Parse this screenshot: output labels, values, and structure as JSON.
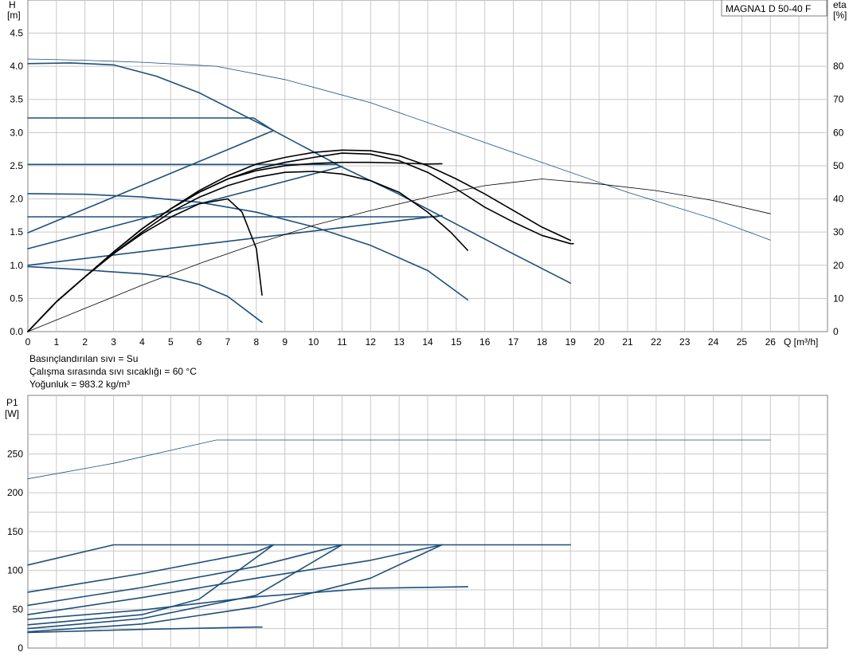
{
  "title_box": "MAGNA1 D 50-40 F",
  "notes": [
    "Basınçlandırılan sıvı = Su",
    "Çalışma sırasında sıvı sıcaklığı = 60 °C",
    "Yoğunluk = 983.2 kg/m³"
  ],
  "colors": {
    "pump": "#1e4f7a",
    "eff": "#000000",
    "grid": "#c8c8c8"
  },
  "chart_data": [
    {
      "type": "line",
      "ylabel_top": "H",
      "ylabel_unit": "[m]",
      "y2label_top": "eta",
      "y2label_unit": "[%]",
      "xlabel": "Q [m³/h]",
      "xlim": [
        0,
        28
      ],
      "ylim": [
        0,
        5
      ],
      "y2lim": [
        0,
        100
      ],
      "x_ticks": [
        "0",
        "1",
        "2",
        "3",
        "4",
        "5",
        "6",
        "7",
        "8",
        "9",
        "10",
        "11",
        "12",
        "13",
        "14",
        "15",
        "16",
        "17",
        "18",
        "19",
        "20",
        "21",
        "22",
        "23",
        "24",
        "25",
        "26"
      ],
      "y_ticks": [
        "0.0",
        "0.5",
        "1.0",
        "1.5",
        "2.0",
        "2.5",
        "3.0",
        "3.5",
        "4.0",
        "4.5"
      ],
      "y2_ticks": [
        "0",
        "10",
        "20",
        "30",
        "40",
        "50",
        "60",
        "70",
        "80"
      ],
      "grid": true,
      "series": [
        {
          "kind": "head",
          "style": "thin",
          "points": [
            [
              0,
              4.11
            ],
            [
              2,
              4.09
            ],
            [
              4,
              4.06
            ],
            [
              6.6,
              4.0
            ],
            [
              9,
              3.8
            ],
            [
              12,
              3.45
            ],
            [
              15,
              3.0
            ],
            [
              18,
              2.55
            ],
            [
              21,
              2.1
            ],
            [
              24,
              1.7
            ],
            [
              26,
              1.38
            ]
          ]
        },
        {
          "kind": "head",
          "style": "thick",
          "points": [
            [
              0,
              4.04
            ],
            [
              1.5,
              4.05
            ],
            [
              3,
              4.02
            ],
            [
              4.5,
              3.85
            ],
            [
              6,
              3.6
            ],
            [
              8.6,
              3.03
            ],
            [
              11,
              2.48
            ],
            [
              13,
              2.07
            ],
            [
              15,
              1.62
            ],
            [
              17,
              1.17
            ],
            [
              19,
              0.73
            ]
          ]
        },
        {
          "kind": "head",
          "style": "thick",
          "points": [
            [
              0,
              3.22
            ],
            [
              7.9,
              3.22
            ],
            [
              8.6,
              3.03
            ]
          ]
        },
        {
          "kind": "head",
          "style": "thick",
          "points": [
            [
              0,
              2.52
            ],
            [
              10.8,
              2.52
            ],
            [
              11,
              2.48
            ]
          ]
        },
        {
          "kind": "head",
          "style": "thick",
          "points": [
            [
              0,
              1.73
            ],
            [
              14.3,
              1.73
            ],
            [
              14.5,
              1.75
            ]
          ]
        },
        {
          "kind": "head",
          "style": "thick",
          "points": [
            [
              0,
              2.08
            ],
            [
              2,
              2.07
            ],
            [
              4,
              2.03
            ],
            [
              6,
              1.95
            ],
            [
              8,
              1.8
            ],
            [
              10,
              1.58
            ],
            [
              12,
              1.3
            ],
            [
              14,
              0.92
            ],
            [
              15.4,
              0.48
            ]
          ]
        },
        {
          "kind": "head",
          "style": "thick",
          "points": [
            [
              0,
              0.98
            ],
            [
              2,
              0.93
            ],
            [
              4,
              0.87
            ],
            [
              5,
              0.82
            ],
            [
              6,
              0.71
            ],
            [
              7,
              0.53
            ],
            [
              8.2,
              0.14
            ]
          ]
        },
        {
          "kind": "system",
          "style": "thick",
          "points": [
            [
              0,
              1.49
            ],
            [
              8.6,
              3.03
            ]
          ]
        },
        {
          "kind": "system",
          "style": "thick",
          "points": [
            [
              0,
              1.25
            ],
            [
              11,
              2.49
            ]
          ]
        },
        {
          "kind": "system",
          "style": "thick",
          "points": [
            [
              0,
              1.0
            ],
            [
              14.5,
              1.75
            ]
          ]
        },
        {
          "kind": "eff",
          "style": "thin",
          "points": [
            [
              0,
              0
            ],
            [
              2,
              7
            ],
            [
              4,
              14
            ],
            [
              6,
              20.5
            ],
            [
              8,
              26.5
            ],
            [
              10,
              32
            ],
            [
              12,
              36.5
            ],
            [
              14,
              40.5
            ],
            [
              16,
              44
            ],
            [
              18,
              46
            ],
            [
              20,
              44.5
            ],
            [
              22,
              42.5
            ],
            [
              24,
              39.5
            ],
            [
              26,
              35.5
            ]
          ]
        },
        {
          "kind": "eff",
          "style": "thick",
          "points": [
            [
              0,
              0
            ],
            [
              1,
              9
            ],
            [
              2,
              16.5
            ],
            [
              3,
              23.5
            ],
            [
              4,
              29.5
            ],
            [
              5,
              34.5
            ],
            [
              6,
              38.5
            ],
            [
              7,
              40
            ],
            [
              7.5,
              36
            ],
            [
              8,
              25
            ],
            [
              8.2,
              11
            ]
          ]
        },
        {
          "kind": "eff",
          "style": "thick",
          "points": [
            [
              0,
              0
            ],
            [
              1,
              9
            ],
            [
              2,
              16.5
            ],
            [
              3,
              23.5
            ],
            [
              4,
              30
            ],
            [
              5,
              36
            ],
            [
              6,
              40.5
            ],
            [
              7,
              44
            ],
            [
              8,
              46.5
            ],
            [
              9,
              48
            ],
            [
              10,
              48.3
            ],
            [
              11,
              47.5
            ],
            [
              12,
              45.5
            ],
            [
              13,
              42
            ],
            [
              14,
              36
            ],
            [
              14.8,
              30
            ],
            [
              15.4,
              24.5
            ]
          ]
        },
        {
          "kind": "eff",
          "style": "thick",
          "points": [
            [
              0,
              0
            ],
            [
              1,
              9
            ],
            [
              2,
              16.5
            ],
            [
              3,
              24
            ],
            [
              4,
              31
            ],
            [
              5,
              37
            ],
            [
              6,
              42
            ],
            [
              7,
              46
            ],
            [
              8,
              49
            ],
            [
              9,
              51
            ],
            [
              10,
              52.5
            ],
            [
              11,
              53.8
            ],
            [
              12,
              53.5
            ],
            [
              13,
              51.5
            ],
            [
              14,
              48
            ],
            [
              15,
              43
            ],
            [
              16,
              37.5
            ],
            [
              17,
              33
            ],
            [
              18,
              29
            ],
            [
              19,
              26.5
            ],
            [
              19.1,
              26.5
            ]
          ]
        },
        {
          "kind": "eff",
          "style": "thick",
          "points": [
            [
              0,
              0
            ],
            [
              1,
              9
            ],
            [
              2,
              16.5
            ],
            [
              3,
              24
            ],
            [
              4,
              31
            ],
            [
              5,
              37
            ],
            [
              6,
              42.5
            ],
            [
              7,
              47
            ],
            [
              8,
              50.5
            ],
            [
              9,
              52.5
            ],
            [
              10,
              54
            ],
            [
              11,
              54.7
            ],
            [
              12,
              54.5
            ],
            [
              13,
              53
            ],
            [
              14,
              50
            ],
            [
              15,
              46
            ],
            [
              16,
              41.5
            ],
            [
              17,
              36.5
            ],
            [
              18,
              31.5
            ],
            [
              19,
              27.5
            ]
          ]
        },
        {
          "kind": "eff",
          "style": "thick",
          "points": [
            [
              0,
              0
            ],
            [
              1,
              9
            ],
            [
              2,
              16.5
            ],
            [
              3,
              24
            ],
            [
              4,
              31
            ],
            [
              5,
              37
            ],
            [
              6,
              42
            ],
            [
              7,
              46
            ],
            [
              8,
              48.5
            ],
            [
              9,
              50
            ],
            [
              10,
              50.7
            ],
            [
              11,
              51
            ],
            [
              12,
              51
            ],
            [
              13,
              50.8
            ],
            [
              14,
              50.5
            ],
            [
              14.5,
              50.6
            ]
          ]
        }
      ]
    },
    {
      "type": "line",
      "ylabel_top": "P1",
      "ylabel_unit": "[W]",
      "xlim": [
        0,
        28
      ],
      "ylim": [
        0,
        300
      ],
      "y_ticks": [
        "0",
        "50",
        "100",
        "150",
        "200",
        "250"
      ],
      "grid": true,
      "series": [
        {
          "style": "thin",
          "points": [
            [
              0,
              218
            ],
            [
              3,
              238
            ],
            [
              6.6,
              268
            ],
            [
              26,
              268
            ]
          ]
        },
        {
          "style": "thick",
          "points": [
            [
              0,
              107
            ],
            [
              3,
              133
            ],
            [
              19,
              133
            ]
          ]
        },
        {
          "style": "thick",
          "points": [
            [
              0,
              72
            ],
            [
              4,
              96
            ],
            [
              8,
              124
            ],
            [
              8.6,
              133
            ]
          ]
        },
        {
          "style": "thick",
          "points": [
            [
              0,
              55
            ],
            [
              4,
              78
            ],
            [
              8,
              105
            ],
            [
              11,
              133
            ]
          ]
        },
        {
          "style": "thick",
          "points": [
            [
              0,
              43
            ],
            [
              4,
              65
            ],
            [
              8,
              90
            ],
            [
              12,
              113
            ],
            [
              14.5,
              133
            ]
          ]
        },
        {
          "style": "thick",
          "points": [
            [
              0,
              37
            ],
            [
              4,
              49
            ],
            [
              8,
              66
            ],
            [
              12,
              77
            ],
            [
              15.4,
              79
            ]
          ]
        },
        {
          "style": "thick",
          "points": [
            [
              0,
              30
            ],
            [
              4,
              43
            ],
            [
              6,
              63
            ],
            [
              8.6,
              133
            ]
          ]
        },
        {
          "style": "thick",
          "points": [
            [
              0,
              25
            ],
            [
              4,
              38
            ],
            [
              8,
              68
            ],
            [
              11,
              133
            ]
          ]
        },
        {
          "style": "thick",
          "points": [
            [
              0,
              21
            ],
            [
              4,
              31
            ],
            [
              8,
              53
            ],
            [
              12,
              90
            ],
            [
              14.5,
              133
            ]
          ]
        },
        {
          "style": "thick",
          "points": [
            [
              0,
              20
            ],
            [
              4,
              24
            ],
            [
              8,
              27
            ],
            [
              8.2,
              27
            ]
          ]
        }
      ]
    }
  ]
}
